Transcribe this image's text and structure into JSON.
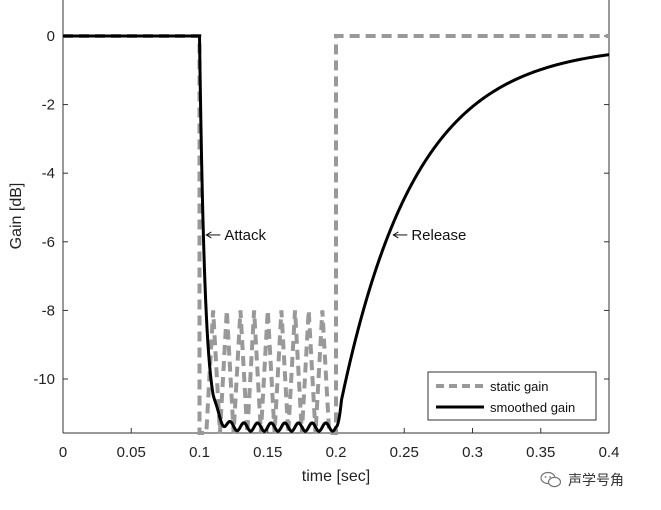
{
  "chart_data": {
    "type": "line",
    "title": "",
    "xlabel": "time [sec]",
    "ylabel": "Gain [dB]",
    "xlim": [
      0,
      0.4
    ],
    "ylim": [
      -11.5,
      0.8
    ],
    "xticks": [
      0,
      0.05,
      0.1,
      0.15,
      0.2,
      0.25,
      0.3,
      0.35,
      0.4
    ],
    "xtick_labels": [
      "0",
      "0.05",
      "0.1",
      "0.15",
      "0.2",
      "0.25",
      "0.3",
      "0.35",
      "0.4"
    ],
    "yticks": [
      0,
      -2,
      -4,
      -6,
      -8,
      -10
    ],
    "ytick_labels": [
      "0",
      "-2",
      "-4",
      "-6",
      "-8",
      "-10"
    ],
    "grid": false,
    "legend_position": "bottom-right",
    "series": [
      {
        "name": "static gain",
        "style": "dashed",
        "color": "#999999",
        "points": [
          [
            0,
            0
          ],
          [
            0.1,
            0
          ],
          [
            0.1,
            -11.6
          ],
          [
            0.105,
            -11.6
          ],
          [
            0.11,
            -8.0
          ],
          [
            0.115,
            -11.6
          ],
          [
            0.12,
            -8.0
          ],
          [
            0.125,
            -11.6
          ],
          [
            0.13,
            -8.0
          ],
          [
            0.135,
            -11.6
          ],
          [
            0.14,
            -8.0
          ],
          [
            0.145,
            -11.6
          ],
          [
            0.15,
            -8.0
          ],
          [
            0.155,
            -11.6
          ],
          [
            0.16,
            -8.0
          ],
          [
            0.165,
            -11.6
          ],
          [
            0.17,
            -8.0
          ],
          [
            0.175,
            -11.6
          ],
          [
            0.18,
            -8.0
          ],
          [
            0.185,
            -11.6
          ],
          [
            0.19,
            -8.0
          ],
          [
            0.195,
            -11.6
          ],
          [
            0.2,
            -11.6
          ],
          [
            0.2,
            0
          ],
          [
            0.4,
            0
          ]
        ]
      },
      {
        "name": "smoothed gain",
        "style": "solid",
        "color": "#000000",
        "attack_start": 0.1,
        "release_start": 0.2,
        "floor_db": -11.4,
        "attack_tau": 0.004,
        "release_tau": 0.055,
        "end_value_db": -0.25
      }
    ],
    "annotations": [
      {
        "text": "Attack",
        "x": 0.105,
        "y": -5.8
      },
      {
        "text": "Release",
        "x": 0.242,
        "y": -5.8
      }
    ]
  },
  "watermark": {
    "text": "声学号角",
    "icon": "wechat-icon"
  }
}
